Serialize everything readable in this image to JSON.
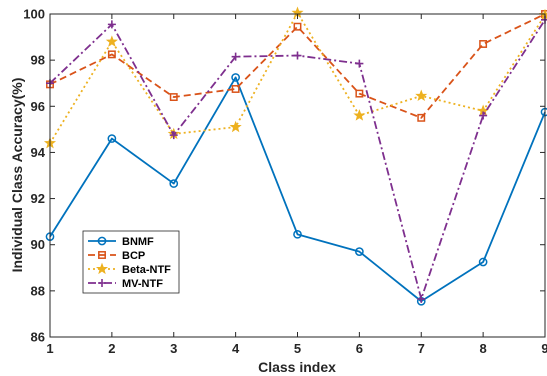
{
  "chart_data": {
    "type": "line",
    "xlabel": "Class index",
    "ylabel": "Individual Class Accuracy(%)",
    "x": [
      1,
      2,
      3,
      4,
      5,
      6,
      7,
      8,
      9
    ],
    "xlim": [
      1,
      9
    ],
    "ylim": [
      86,
      100
    ],
    "xticks": [
      "1",
      "2",
      "3",
      "4",
      "5",
      "6",
      "7",
      "8",
      "9"
    ],
    "yticks": [
      "86",
      "88",
      "90",
      "92",
      "94",
      "96",
      "98",
      "100"
    ],
    "grid": false,
    "legend_position": "bottom-left",
    "series": [
      {
        "name": "BNMF",
        "color": "#0072BD",
        "marker": "circle",
        "dash": "solid",
        "values": [
          90.35,
          94.6,
          92.65,
          97.25,
          90.45,
          89.7,
          87.55,
          89.25,
          95.75
        ]
      },
      {
        "name": "BCP",
        "color": "#D95319",
        "marker": "square",
        "dash": "dashed",
        "values": [
          96.95,
          98.25,
          96.4,
          96.75,
          99.45,
          96.55,
          95.5,
          98.7,
          100.0
        ]
      },
      {
        "name": "Beta-NTF",
        "color": "#EDB120",
        "marker": "star",
        "dash": "dotted",
        "values": [
          94.4,
          98.8,
          94.8,
          95.1,
          100.05,
          95.6,
          96.45,
          95.8,
          99.95
        ]
      },
      {
        "name": "MV-NTF",
        "color": "#7E2F8E",
        "marker": "plus",
        "dash": "dashdot",
        "values": [
          97.0,
          99.55,
          94.75,
          98.15,
          98.2,
          97.85,
          87.65,
          95.6,
          99.75
        ]
      }
    ]
  }
}
